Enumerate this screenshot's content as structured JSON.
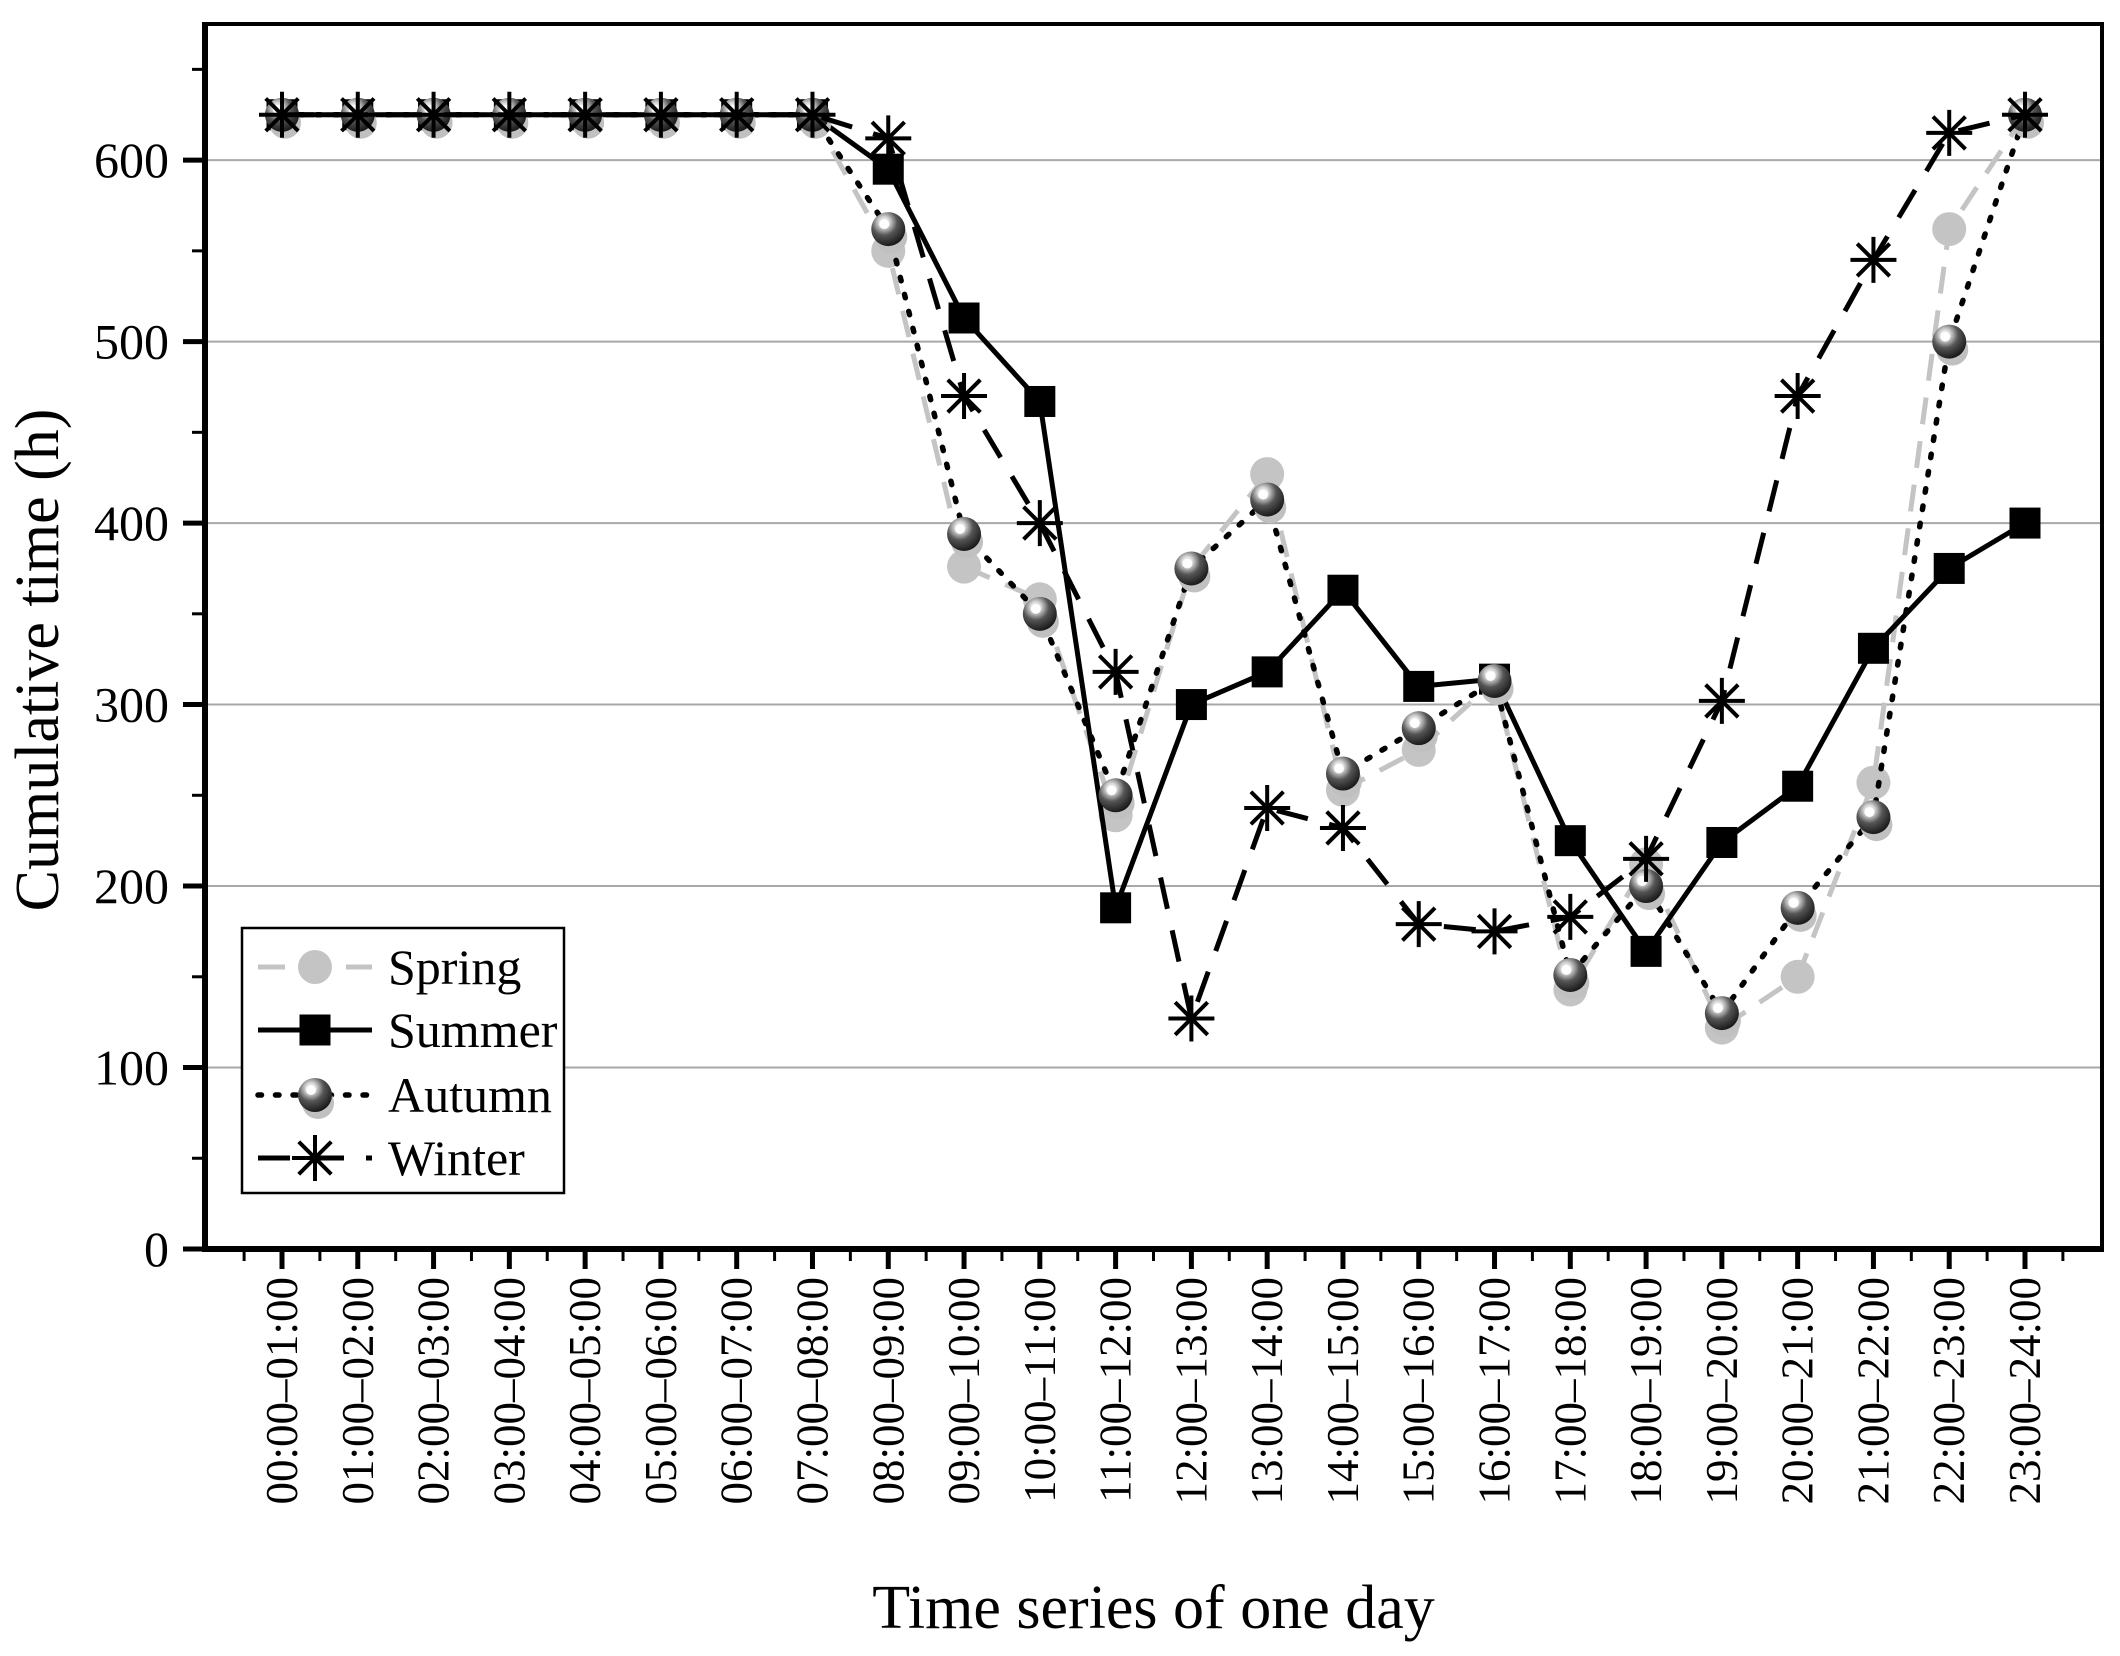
{
  "chart_data": {
    "type": "line",
    "title": "",
    "xlabel": "Time series of one day",
    "ylabel": "Cumulative time (h)",
    "ylim": [
      0,
      675
    ],
    "yticks": [
      0,
      100,
      200,
      300,
      400,
      500,
      600
    ],
    "grid": "horizontal-major",
    "legend_position": "lower-left-inside",
    "categories": [
      "00:00–01:00",
      "01:00–02:00",
      "02:00–03:00",
      "03:00–04:00",
      "04:00–05:00",
      "05:00–06:00",
      "06:00–07:00",
      "07:00–08:00",
      "08:00–09:00",
      "09:00–10:00",
      "10:00–11:00",
      "11:00–12:00",
      "12:00–13:00",
      "13:00–14:00",
      "14:00–15:00",
      "15:00–16:00",
      "16:00–17:00",
      "17:00–18:00",
      "18:00–19:00",
      "19:00–20:00",
      "20:00–21:00",
      "21:00–22:00",
      "22:00–23:00",
      "23:00–24:00"
    ],
    "series": [
      {
        "name": "Spring",
        "marker": "circle",
        "line_style": "dashed",
        "color": "#c4c4c4",
        "values": [
          625,
          625,
          625,
          625,
          625,
          625,
          625,
          625,
          550,
          376,
          358,
          239,
          375,
          427,
          253,
          275,
          313,
          143,
          212,
          122,
          150,
          257,
          562,
          625
        ]
      },
      {
        "name": "Summer",
        "marker": "square",
        "line_style": "solid",
        "color": "#000000",
        "values": [
          625,
          625,
          625,
          625,
          625,
          625,
          625,
          625,
          595,
          513,
          467,
          188,
          300,
          318,
          363,
          310,
          314,
          225,
          164,
          224,
          255,
          331,
          375,
          400
        ]
      },
      {
        "name": "Autumn",
        "marker": "sphere",
        "line_style": "dotted",
        "color": "#000000",
        "values": [
          625,
          625,
          625,
          625,
          625,
          625,
          625,
          625,
          562,
          394,
          350,
          250,
          375,
          413,
          262,
          287,
          313,
          151,
          200,
          130,
          188,
          238,
          500,
          625
        ]
      },
      {
        "name": "Winter",
        "marker": "asterisk",
        "line_style": "long-dash",
        "color": "#000000",
        "values": [
          625,
          625,
          625,
          625,
          625,
          625,
          625,
          625,
          612,
          470,
          400,
          318,
          127,
          243,
          232,
          179,
          175,
          183,
          215,
          302,
          470,
          545,
          615,
          625
        ]
      }
    ],
    "colors": {
      "gridline": "#a8a8a8",
      "axis": "#000000",
      "background": "#ffffff",
      "spring_gray": "#c4c4c4",
      "ball_shadow": "#c0c0c0"
    }
  }
}
